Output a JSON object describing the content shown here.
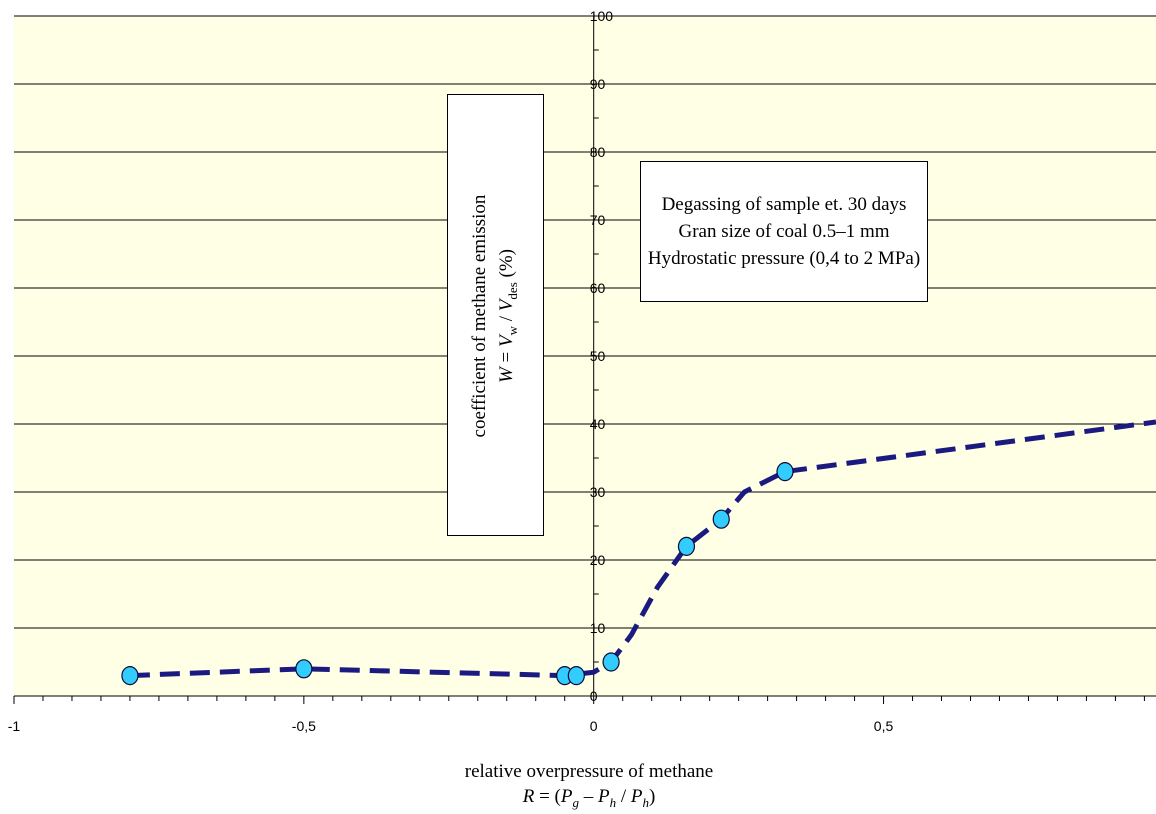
{
  "chart_data": {
    "type": "line",
    "xlim": [
      -1,
      0.97
    ],
    "ylim": [
      0,
      100
    ],
    "x_ticks": [
      -1,
      -0.5,
      0,
      0.5
    ],
    "x_tick_labels": [
      "-1",
      "-0,5",
      "0",
      "0,5"
    ],
    "y_ticks": [
      0,
      10,
      20,
      30,
      40,
      50,
      60,
      70,
      80,
      90,
      100
    ],
    "y_tick_labels": [
      "0",
      "10",
      "20",
      "30",
      "40",
      "50",
      "60",
      "70",
      "80",
      "90",
      "100"
    ],
    "grid": "horizontal",
    "background_color": "#ffffe6",
    "points": [
      {
        "x": -0.8,
        "y": 3
      },
      {
        "x": -0.5,
        "y": 4
      },
      {
        "x": -0.05,
        "y": 3
      },
      {
        "x": -0.03,
        "y": 3
      },
      {
        "x": 0.03,
        "y": 5
      },
      {
        "x": 0.16,
        "y": 22
      },
      {
        "x": 0.22,
        "y": 26
      },
      {
        "x": 0.33,
        "y": 33
      }
    ],
    "trend_line": [
      {
        "x": -0.8,
        "y": 3
      },
      {
        "x": -0.5,
        "y": 4
      },
      {
        "x": -0.05,
        "y": 3
      },
      {
        "x": 0.0,
        "y": 3.5
      },
      {
        "x": 0.03,
        "y": 5
      },
      {
        "x": 0.065,
        "y": 9
      },
      {
        "x": 0.11,
        "y": 16
      },
      {
        "x": 0.16,
        "y": 22
      },
      {
        "x": 0.22,
        "y": 26
      },
      {
        "x": 0.26,
        "y": 30
      },
      {
        "x": 0.33,
        "y": 33
      },
      {
        "x": 0.97,
        "y": 40.3
      }
    ],
    "marker_color": "#33ccff",
    "line_color": "#1a1a80"
  },
  "ylabel": {
    "line1": "coefficient of methane emission",
    "W": "W",
    "eq": " = ",
    "Vw": "V",
    "w_sub": "w",
    "slash": " / ",
    "Vdes": "V",
    "des_sub": "des",
    "unit": " (%)"
  },
  "info": {
    "line1": "Degassing of sample et. 30 days",
    "line2": "Gran size of coal 0.5–1 mm",
    "line3": "Hydrostatic pressure (0,4 to 2 MPa)"
  },
  "xlabel": {
    "line1": "relative overpressure of methane",
    "R": "R",
    "eq_open": " = (",
    "Pg": "P",
    "g_sub": "g",
    "minus": " – ",
    "Ph": "P",
    "h_sub": "h",
    "slash": " / ",
    "Ph2": "P",
    "h_sub2": "h",
    "close": ")"
  }
}
